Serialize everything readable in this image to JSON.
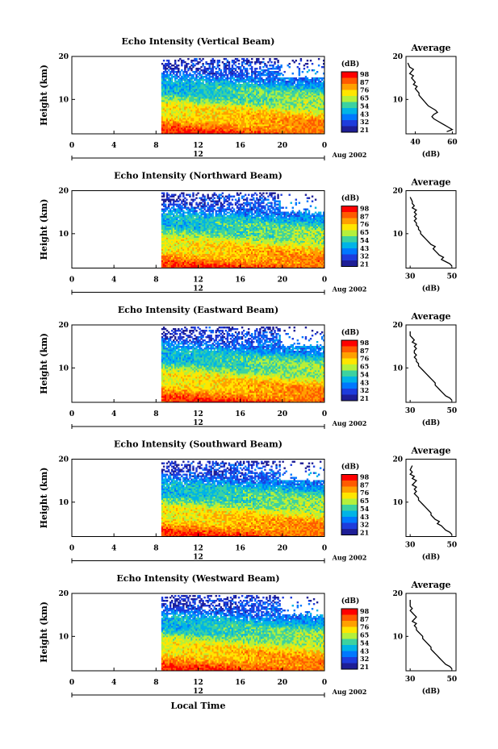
{
  "chart_data": [
    {
      "type": "heatmap",
      "title": "Echo Intensity (Vertical Beam)",
      "ylabel": "Height (km)",
      "x_ticks": [
        "0",
        "4",
        "8",
        "12",
        "16",
        "20",
        "0"
      ],
      "y_ticks": [
        "20",
        "10"
      ],
      "xlim": [
        0,
        24
      ],
      "ylim": [
        2,
        20
      ],
      "data_start_hour": 8.5,
      "date_label": "12",
      "month_label": "Aug 2002",
      "colorbar": {
        "unit": "(dB)",
        "labels": [
          "98",
          "87",
          "76",
          "65",
          "54",
          "43",
          "32",
          "21"
        ],
        "colors": [
          "#ff0000",
          "#ff5a00",
          "#ffa000",
          "#ffe600",
          "#b4f03c",
          "#3cd2a0",
          "#00b4e6",
          "#0078ff",
          "#1e3cdc",
          "#1e1e96"
        ]
      },
      "profile": {
        "title": "Average",
        "xlabel": "(dB)",
        "x_ticks": [
          "40",
          "60"
        ],
        "xlim": [
          35,
          62
        ],
        "y_ticks": [
          "20",
          "10"
        ],
        "x": [
          57,
          60,
          58,
          56,
          54,
          52,
          50,
          49,
          50,
          52,
          51,
          49,
          47,
          46,
          45,
          44,
          43,
          42,
          42,
          41,
          40,
          41,
          39,
          40,
          39,
          38,
          39,
          37,
          38,
          39,
          37,
          36
        ],
        "y": [
          2.5,
          3,
          3.5,
          4,
          4.5,
          5,
          5.5,
          6,
          6.5,
          7,
          7.5,
          8,
          8.5,
          9,
          9.5,
          10,
          10.5,
          11,
          11.5,
          12,
          12.5,
          13,
          13.5,
          14,
          14.5,
          15,
          15.5,
          16,
          16.5,
          17,
          17.5,
          18.5
        ]
      }
    },
    {
      "type": "heatmap",
      "title": "Echo Intensity (Northward Beam)",
      "ylabel": "Height (km)",
      "x_ticks": [
        "0",
        "4",
        "8",
        "12",
        "16",
        "20",
        "0"
      ],
      "y_ticks": [
        "20",
        "10"
      ],
      "xlim": [
        0,
        24
      ],
      "ylim": [
        2,
        20
      ],
      "data_start_hour": 8.5,
      "date_label": "12",
      "month_label": "Aug 2002",
      "colorbar": {
        "unit": "(dB)",
        "labels": [
          "98",
          "87",
          "76",
          "65",
          "54",
          "43",
          "32",
          "21"
        ],
        "colors": [
          "#ff0000",
          "#ff5a00",
          "#ffa000",
          "#ffe600",
          "#b4f03c",
          "#3cd2a0",
          "#00b4e6",
          "#0078ff",
          "#1e3cdc",
          "#1e1e96"
        ]
      },
      "profile": {
        "title": "Average",
        "xlabel": "(dB)",
        "x_ticks": [
          "30",
          "50"
        ],
        "xlim": [
          28,
          52
        ],
        "y_ticks": [
          "20",
          "10"
        ],
        "x": [
          50,
          49,
          47,
          45,
          46,
          44,
          43,
          42,
          41,
          42,
          40,
          39,
          38,
          37,
          36,
          35,
          35,
          34,
          34,
          33,
          33,
          32,
          33,
          32,
          33,
          32,
          33,
          31,
          32,
          31,
          31,
          30
        ],
        "y": [
          2.5,
          3,
          3.5,
          4,
          4.5,
          5,
          5.5,
          6,
          6.5,
          7,
          7.5,
          8,
          8.5,
          9,
          9.5,
          10,
          10.5,
          11,
          11.5,
          12,
          12.5,
          13,
          13.5,
          14,
          14.5,
          15,
          15.5,
          16,
          16.5,
          17,
          17.5,
          18.5
        ]
      }
    },
    {
      "type": "heatmap",
      "title": "Echo Intensity (Eastward Beam)",
      "ylabel": "Height (km)",
      "x_ticks": [
        "0",
        "4",
        "8",
        "12",
        "16",
        "20",
        "0"
      ],
      "y_ticks": [
        "20",
        "10"
      ],
      "xlim": [
        0,
        24
      ],
      "ylim": [
        2,
        20
      ],
      "data_start_hour": 8.5,
      "date_label": "12",
      "month_label": "Aug 2002",
      "colorbar": {
        "unit": "(dB)",
        "labels": [
          "98",
          "87",
          "76",
          "65",
          "54",
          "43",
          "32",
          "21"
        ],
        "colors": [
          "#ff0000",
          "#ff5a00",
          "#ffa000",
          "#ffe600",
          "#b4f03c",
          "#3cd2a0",
          "#00b4e6",
          "#0078ff",
          "#1e3cdc",
          "#1e1e96"
        ]
      },
      "profile": {
        "title": "Average",
        "xlabel": "(dB)",
        "x_ticks": [
          "30",
          "50"
        ],
        "xlim": [
          28,
          52
        ],
        "y_ticks": [
          "20",
          "10"
        ],
        "x": [
          50,
          49,
          47,
          46,
          45,
          44,
          43,
          42,
          42,
          41,
          40,
          39,
          38,
          37,
          36,
          35,
          34,
          34,
          33,
          33,
          32,
          33,
          32,
          32,
          33,
          32,
          33,
          31,
          32,
          31,
          30,
          30
        ],
        "y": [
          2.5,
          3,
          3.5,
          4,
          4.5,
          5,
          5.5,
          6,
          6.5,
          7,
          7.5,
          8,
          8.5,
          9,
          9.5,
          10,
          10.5,
          11,
          11.5,
          12,
          12.5,
          13,
          13.5,
          14,
          14.5,
          15,
          15.5,
          16,
          16.5,
          17,
          17.5,
          18.5
        ]
      }
    },
    {
      "type": "heatmap",
      "title": "Echo Intensity (Southward Beam)",
      "ylabel": "Height (km)",
      "x_ticks": [
        "0",
        "4",
        "8",
        "12",
        "16",
        "20",
        "0"
      ],
      "y_ticks": [
        "20",
        "10"
      ],
      "xlim": [
        0,
        24
      ],
      "ylim": [
        2,
        20
      ],
      "data_start_hour": 8.5,
      "date_label": "12",
      "month_label": "Aug 2002",
      "colorbar": {
        "unit": "(dB)",
        "labels": [
          "98",
          "87",
          "76",
          "65",
          "54",
          "43",
          "32",
          "21"
        ],
        "colors": [
          "#ff0000",
          "#ff5a00",
          "#ffa000",
          "#ffe600",
          "#b4f03c",
          "#3cd2a0",
          "#00b4e6",
          "#0078ff",
          "#1e3cdc",
          "#1e1e96"
        ]
      },
      "profile": {
        "title": "Average",
        "xlabel": "(dB)",
        "x_ticks": [
          "30",
          "50"
        ],
        "xlim": [
          28,
          52
        ],
        "y_ticks": [
          "20",
          "10"
        ],
        "x": [
          50,
          49,
          47,
          46,
          45,
          43,
          44,
          42,
          41,
          40,
          40,
          39,
          38,
          37,
          36,
          35,
          34,
          34,
          33,
          32,
          33,
          32,
          33,
          31,
          32,
          33,
          31,
          32,
          30,
          31,
          30,
          31
        ],
        "y": [
          2.5,
          3,
          3.5,
          4,
          4.5,
          5,
          5.5,
          6,
          6.5,
          7,
          7.5,
          8,
          8.5,
          9,
          9.5,
          10,
          10.5,
          11,
          11.5,
          12,
          12.5,
          13,
          13.5,
          14,
          14.5,
          15,
          15.5,
          16,
          16.5,
          17,
          17.5,
          18.5
        ]
      }
    },
    {
      "type": "heatmap",
      "title": "Echo Intensity (Westward Beam)",
      "ylabel": "Height (km)",
      "x_ticks": [
        "0",
        "4",
        "8",
        "12",
        "16",
        "20",
        "0"
      ],
      "y_ticks": [
        "20",
        "10"
      ],
      "xlim": [
        0,
        24
      ],
      "ylim": [
        2,
        20
      ],
      "data_start_hour": 8.5,
      "date_label": "12",
      "month_label": "Aug 2002",
      "xlabel": "Local Time",
      "colorbar": {
        "unit": "(dB)",
        "labels": [
          "98",
          "87",
          "76",
          "65",
          "54",
          "43",
          "32",
          "21"
        ],
        "colors": [
          "#ff0000",
          "#ff5a00",
          "#ffa000",
          "#ffe600",
          "#b4f03c",
          "#3cd2a0",
          "#00b4e6",
          "#0078ff",
          "#1e3cdc",
          "#1e1e96"
        ]
      },
      "profile": {
        "title": "Average",
        "xlabel": "(dB)",
        "x_ticks": [
          "30",
          "50"
        ],
        "xlim": [
          28,
          52
        ],
        "y_ticks": [
          "20",
          "10"
        ],
        "x": [
          50,
          49,
          47,
          46,
          45,
          44,
          43,
          42,
          41,
          40,
          40,
          39,
          38,
          37,
          36,
          36,
          35,
          34,
          33,
          33,
          32,
          33,
          31,
          32,
          33,
          32,
          31,
          30,
          31,
          30,
          30,
          30
        ],
        "y": [
          2.5,
          3,
          3.5,
          4,
          4.5,
          5,
          5.5,
          6,
          6.5,
          7,
          7.5,
          8,
          8.5,
          9,
          9.5,
          10,
          10.5,
          11,
          11.5,
          12,
          12.5,
          13,
          13.5,
          14,
          14.5,
          15,
          15.5,
          16,
          16.5,
          17,
          17.5,
          18.5
        ]
      }
    }
  ]
}
